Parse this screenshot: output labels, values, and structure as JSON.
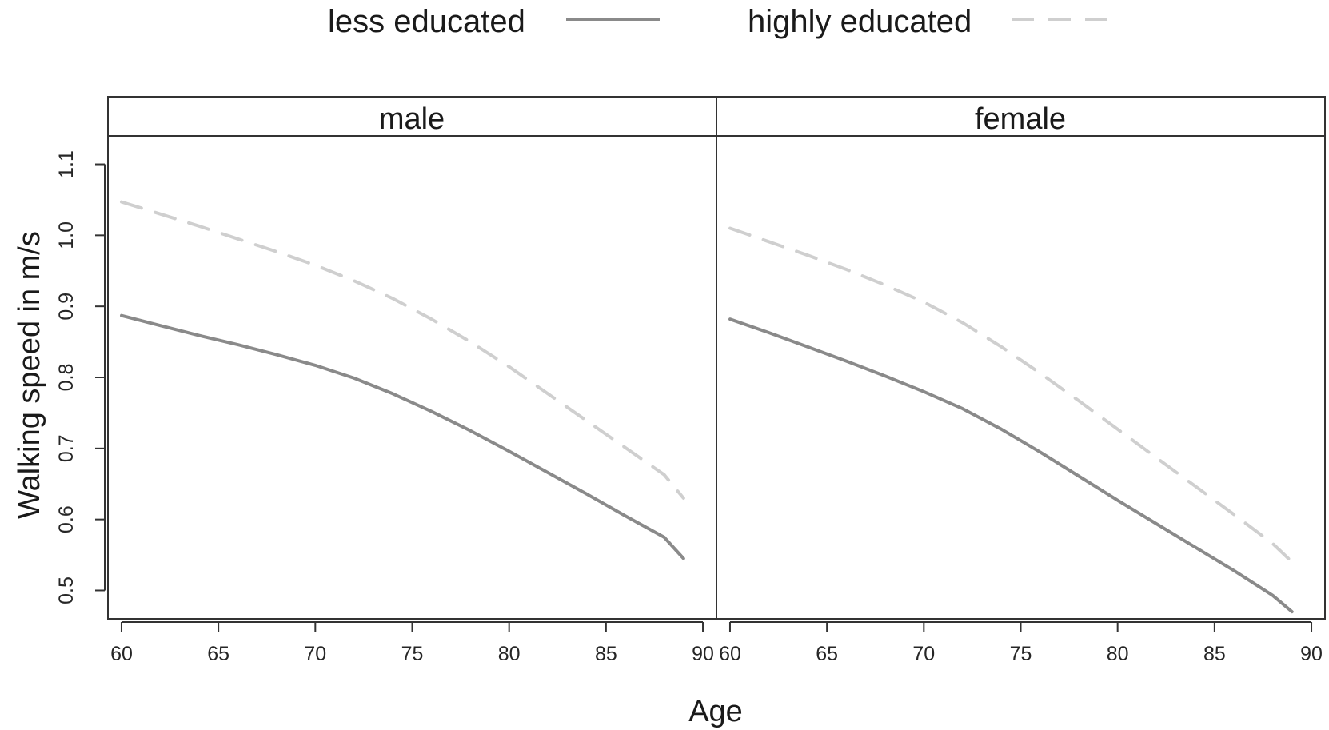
{
  "chart_data": {
    "type": "line",
    "xlabel": "Age",
    "ylabel": "Walking speed in m/s",
    "xlim": [
      59.3,
      90.7
    ],
    "ylim": [
      0.46,
      1.14
    ],
    "x_ticks": [
      60,
      65,
      70,
      75,
      80,
      85,
      90
    ],
    "y_ticks": [
      0.5,
      0.6,
      0.7,
      0.8,
      0.9,
      1.0,
      1.1
    ],
    "y_tick_labels": [
      "0.5",
      "0.6",
      "0.7",
      "0.8",
      "0.9",
      "1.0",
      "1.1"
    ],
    "legend": {
      "placement": "top-center",
      "entries": [
        {
          "label": "less educated",
          "style": "solid",
          "color": "#8a8a8a"
        },
        {
          "label": "highly educated",
          "style": "dashed",
          "color": "#cfcfcf"
        }
      ]
    },
    "panels": [
      {
        "strip": "male",
        "series": [
          {
            "name": "less educated",
            "x": [
              60,
              62,
              64,
              66,
              68,
              70,
              72,
              74,
              76,
              78,
              80,
              82,
              84,
              86,
              88,
              89
            ],
            "y": [
              0.887,
              0.873,
              0.859,
              0.846,
              0.832,
              0.817,
              0.799,
              0.777,
              0.752,
              0.725,
              0.696,
              0.666,
              0.636,
              0.605,
              0.575,
              0.545
            ]
          },
          {
            "name": "highly educated",
            "x": [
              60,
              62,
              64,
              66,
              68,
              70,
              72,
              74,
              76,
              78,
              80,
              82,
              84,
              86,
              88,
              89
            ],
            "y": [
              1.047,
              1.03,
              1.013,
              0.995,
              0.977,
              0.958,
              0.936,
              0.911,
              0.882,
              0.85,
              0.815,
              0.777,
              0.739,
              0.701,
              0.663,
              0.63
            ]
          }
        ]
      },
      {
        "strip": "female",
        "series": [
          {
            "name": "less educated",
            "x": [
              60,
              62,
              64,
              66,
              68,
              70,
              72,
              74,
              76,
              78,
              80,
              82,
              84,
              86,
              88,
              89
            ],
            "y": [
              0.882,
              0.863,
              0.843,
              0.823,
              0.802,
              0.78,
              0.756,
              0.727,
              0.695,
              0.661,
              0.627,
              0.594,
              0.561,
              0.528,
              0.493,
              0.47
            ]
          },
          {
            "name": "highly educated",
            "x": [
              60,
              62,
              64,
              66,
              68,
              70,
              72,
              74,
              76,
              78,
              80,
              82,
              84,
              86,
              88,
              89
            ],
            "y": [
              1.01,
              0.991,
              0.972,
              0.952,
              0.93,
              0.906,
              0.877,
              0.843,
              0.806,
              0.767,
              0.727,
              0.687,
              0.647,
              0.607,
              0.566,
              0.54
            ]
          }
        ]
      }
    ],
    "grid": false
  }
}
